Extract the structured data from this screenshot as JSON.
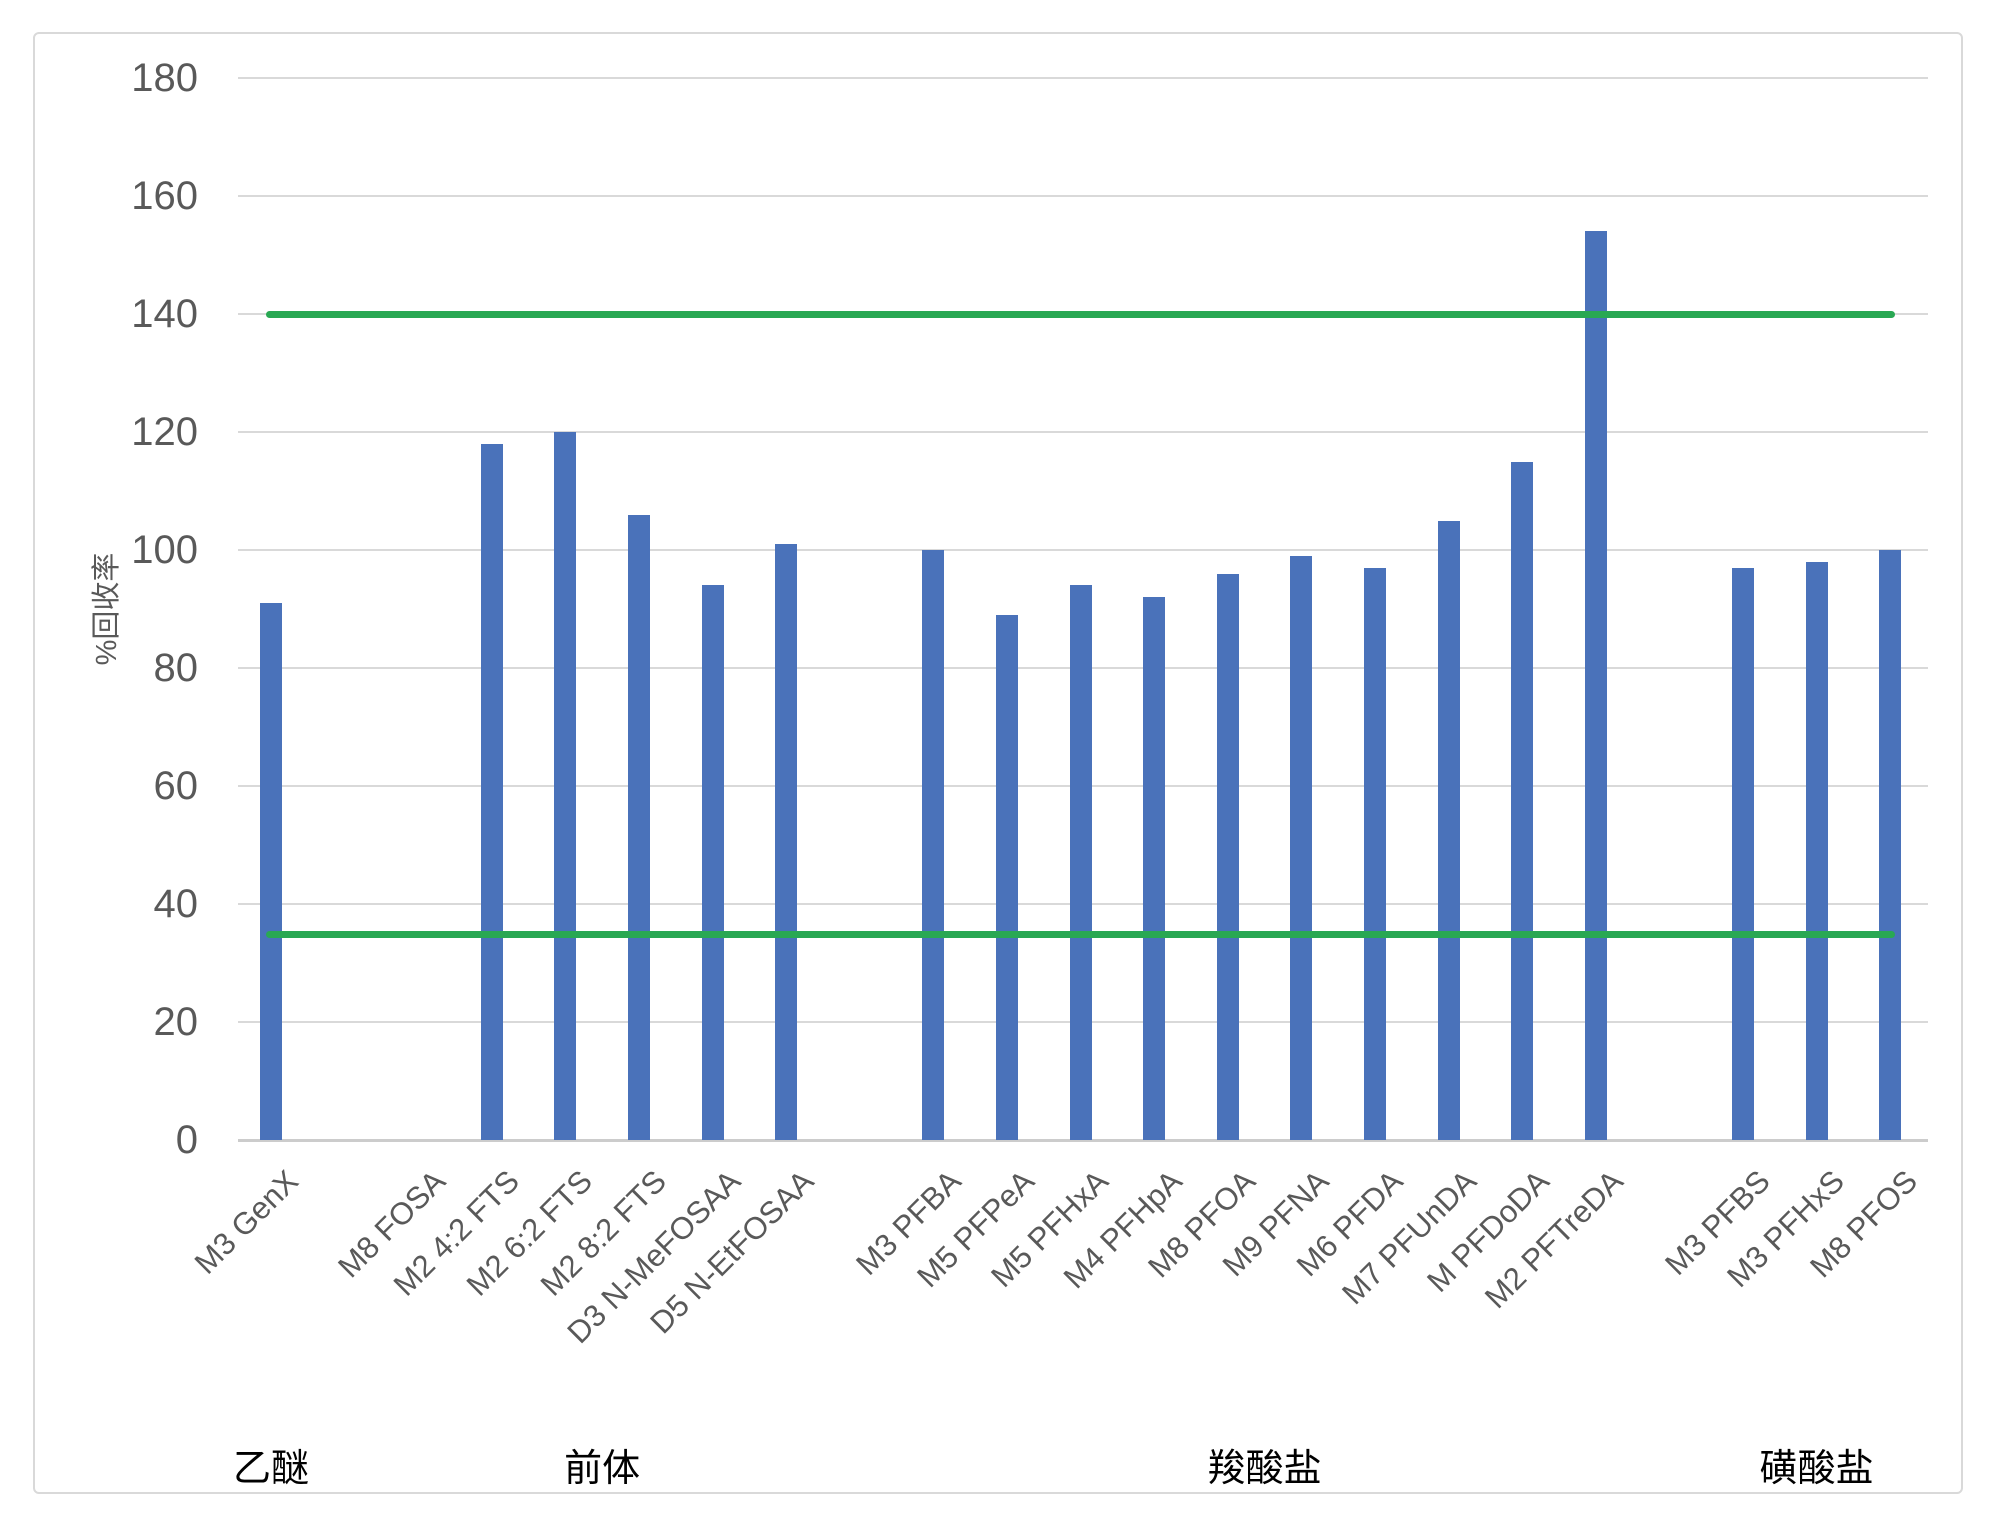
{
  "chart_data": {
    "type": "bar",
    "title": "",
    "ylabel": "%回收率",
    "xlabel": "",
    "ylim": [
      0,
      180
    ],
    "yticks": [
      0,
      20,
      40,
      60,
      80,
      100,
      120,
      140,
      160,
      180
    ],
    "grid": true,
    "legend": "none",
    "bar_color": "#4A72BA",
    "gridline_color": "#D9D9D9",
    "axis_text_color": "#595959",
    "reference_lines": [
      {
        "name": "upper-recovery-limit",
        "value": 140,
        "color": "#29A853"
      },
      {
        "name": "lower-recovery-limit",
        "value": 35,
        "color": "#29A853"
      }
    ],
    "groups": [
      {
        "label": "乙醚",
        "items": [
          {
            "label": "M3 GenX",
            "value": 91
          }
        ]
      },
      {
        "label": "前体",
        "items": [
          {
            "label": "M8 FOSA",
            "value": 0
          },
          {
            "label": "M2 4:2 FTS",
            "value": 118
          },
          {
            "label": "M2 6:2 FTS",
            "value": 120
          },
          {
            "label": "M2 8:2 FTS",
            "value": 106
          },
          {
            "label": "D3 N-MeFOSAA",
            "value": 94
          },
          {
            "label": "D5 N-EtFOSAA",
            "value": 101
          }
        ]
      },
      {
        "label": "羧酸盐",
        "items": [
          {
            "label": "M3 PFBA",
            "value": 100
          },
          {
            "label": "M5 PFPeA",
            "value": 89
          },
          {
            "label": "M5 PFHxA",
            "value": 94
          },
          {
            "label": "M4 PFHpA",
            "value": 92
          },
          {
            "label": "M8 PFOA",
            "value": 96
          },
          {
            "label": "M9 PFNA",
            "value": 99
          },
          {
            "label": "M6 PFDA",
            "value": 97
          },
          {
            "label": "M7 PFUnDA",
            "value": 105
          },
          {
            "label": "M PFDoDA",
            "value": 115
          },
          {
            "label": "M2 PFTreDA",
            "value": 154
          }
        ]
      },
      {
        "label": "磺酸盐",
        "items": [
          {
            "label": "M3 PFBS",
            "value": 97
          },
          {
            "label": "M3 PFHxS",
            "value": 98
          },
          {
            "label": "M8 PFOS",
            "value": 100
          }
        ]
      }
    ]
  }
}
